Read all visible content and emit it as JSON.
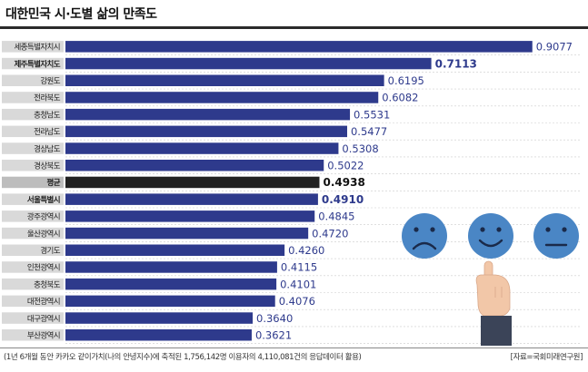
{
  "title": "대한민국 시·도별 삶의 만족도",
  "footnote": "(1년 6개월 동안 카카오 같이가치(나의 안녕지수)에 축적된 1,756,142명 이용자의 4,110,081건의 응답데이터 활용)",
  "source": "[자료=국회미래연구원]",
  "colors": {
    "bar": "#2e3a8c",
    "average_bar": "#222222",
    "value_text": "#2e3a8c",
    "label_bg": "#d9d9d9",
    "grid": "#cccccc"
  },
  "icons": [
    "sad-face-icon",
    "happy-face-icon",
    "neutral-face-icon",
    "pointing-hand-icon"
  ],
  "chart_data": {
    "type": "bar",
    "orientation": "horizontal",
    "title": "대한민국 시·도별 삶의 만족도",
    "categories": [
      "세종특별자치시",
      "제주특별자치도",
      "강원도",
      "전라북도",
      "충청남도",
      "전라남도",
      "경상남도",
      "경상북도",
      "평균",
      "서울특별시",
      "광주광역시",
      "울산광역시",
      "경기도",
      "인천광역시",
      "충청북도",
      "대전광역시",
      "대구광역시",
      "부산광역시"
    ],
    "values": [
      0.9077,
      0.7113,
      0.6195,
      0.6082,
      0.5531,
      0.5477,
      0.5308,
      0.5022,
      0.4938,
      0.491,
      0.4845,
      0.472,
      0.426,
      0.4115,
      0.4101,
      0.4076,
      0.364,
      0.3621
    ],
    "value_labels": [
      "0.9077",
      "0.7113",
      "0.6195",
      "0.6082",
      "0.5531",
      "0.5477",
      "0.5308",
      "0.5022",
      "0.4938",
      "0.4910",
      "0.4845",
      "0.4720",
      "0.4260",
      "0.4115",
      "0.4101",
      "0.4076",
      "0.3640",
      "0.3621"
    ],
    "bold_labels": [
      "제주특별자치도",
      "평균",
      "서울특별시"
    ],
    "highlight": "평균",
    "xlim": [
      0,
      1
    ],
    "grid": true
  }
}
